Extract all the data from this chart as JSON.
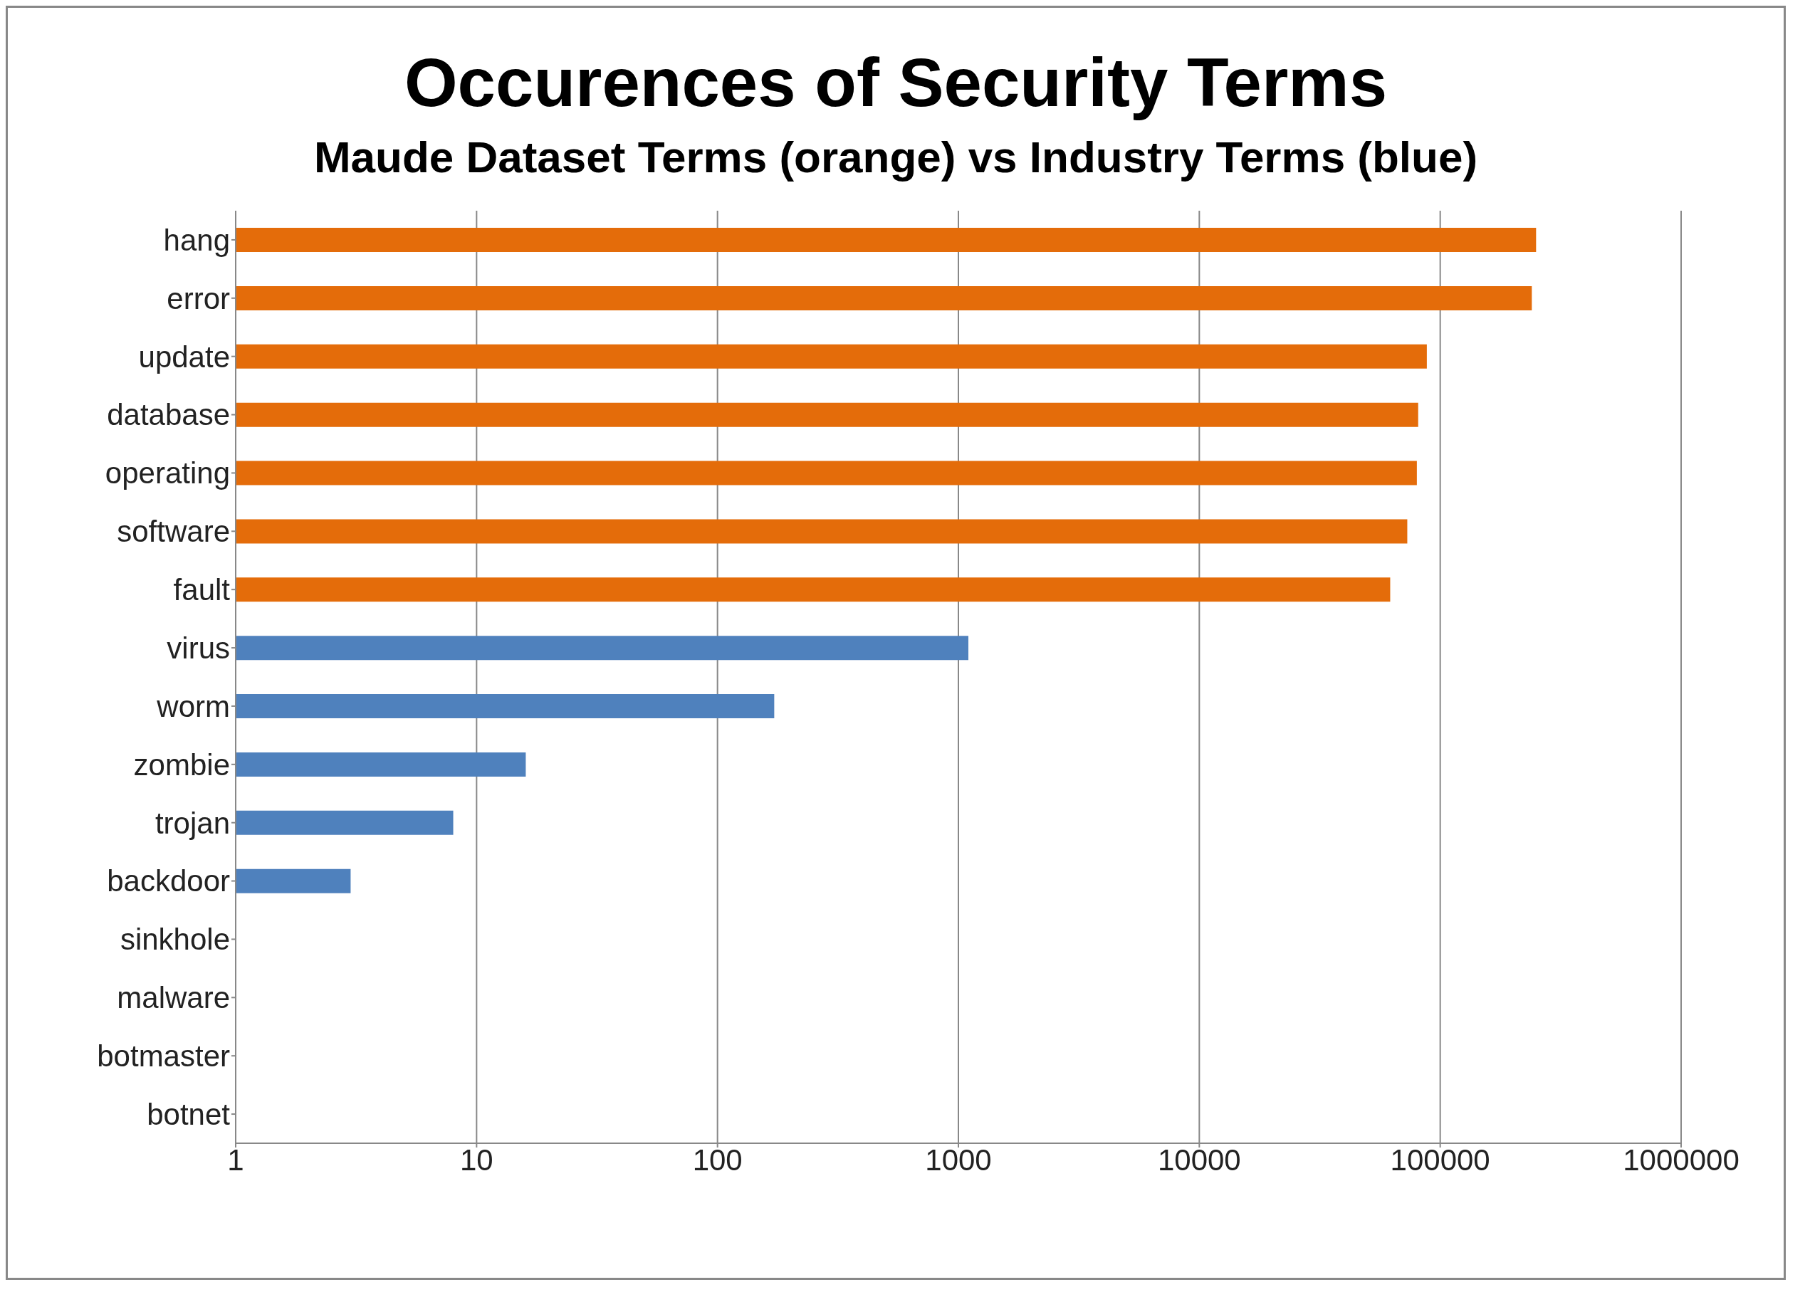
{
  "chart_data": {
    "type": "bar",
    "orientation": "horizontal",
    "title": "Occurences of Security Terms",
    "subtitle": "Maude Dataset Terms (orange) vs Industry Terms (blue)",
    "categories": [
      "hang",
      "error",
      "update",
      "database",
      "operating",
      "software",
      "fault",
      "virus",
      "worm",
      "zombie",
      "trojan",
      "backdoor",
      "sinkhole",
      "malware",
      "botmaster",
      "botnet"
    ],
    "series": [
      {
        "color": "#e46c0a",
        "values": [
          250000,
          240000,
          88000,
          81000,
          80000,
          73000,
          62000,
          null,
          null,
          null,
          null,
          null,
          null,
          null,
          null,
          null
        ]
      },
      {
        "color": "#4f81bd",
        "values": [
          null,
          null,
          null,
          null,
          null,
          null,
          null,
          1100,
          172,
          16,
          8,
          3,
          null,
          null,
          null,
          null
        ]
      }
    ],
    "log": "x",
    "xlim": [
      1,
      1000000
    ],
    "xticks": [
      1,
      10,
      100,
      1000,
      10000,
      100000,
      1000000
    ],
    "grid": "x",
    "legend": false
  }
}
